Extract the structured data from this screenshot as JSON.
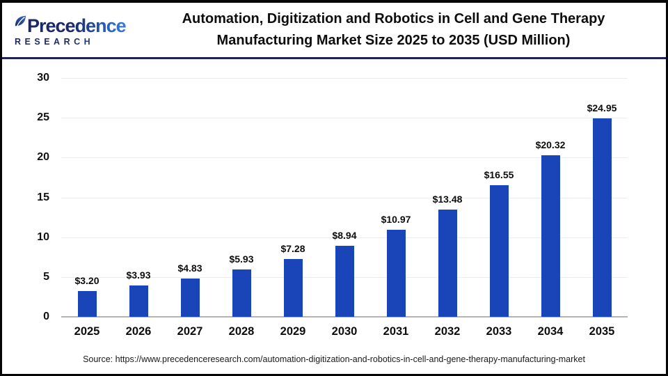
{
  "header": {
    "logo": {
      "name": "Precedence",
      "subtitle": "RESEARCH"
    },
    "title_line1": "Automation, Digitization and Robotics in Cell and Gene Therapy",
    "title_line2": "Manufacturing Market Size 2025 to 2035 (USD Million)"
  },
  "chart_data": {
    "type": "bar",
    "title": "Automation, Digitization and Robotics in Cell and Gene Therapy Manufacturing Market Size 2025 to 2035 (USD Million)",
    "categories": [
      "2025",
      "2026",
      "2027",
      "2028",
      "2029",
      "2030",
      "2031",
      "2032",
      "2033",
      "2034",
      "2035"
    ],
    "values": [
      3.2,
      3.93,
      4.83,
      5.93,
      7.28,
      8.94,
      10.97,
      13.48,
      16.55,
      20.32,
      24.95
    ],
    "value_labels": [
      "$3.20",
      "$3.93",
      "$4.83",
      "$5.93",
      "$7.28",
      "$8.94",
      "$10.97",
      "$13.48",
      "$16.55",
      "$20.32",
      "$24.95"
    ],
    "xlabel": "",
    "ylabel": "",
    "ylim": [
      0,
      30
    ],
    "yticks": [
      0,
      5,
      10,
      15,
      20,
      25,
      30
    ],
    "grid": "horizontal",
    "legend": "none"
  },
  "colors": {
    "bar": "#1a45b8",
    "gridline": "#ededed",
    "baseline": "#b3b3b3",
    "divider": "#1e2257",
    "logo_navy": "#1b2a66",
    "logo_blue": "#3a7bd8",
    "text": "#0d0d0d"
  },
  "footer": {
    "source": "Source: https://www.precedenceresearch.com/automation-digitization-and-robotics-in-cell-and-gene-therapy-manufacturing-market"
  }
}
